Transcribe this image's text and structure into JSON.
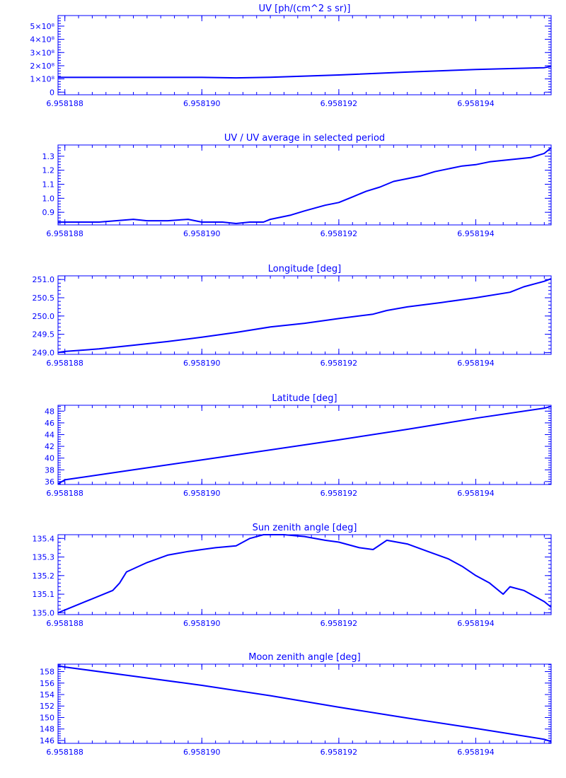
{
  "page": {
    "line_color": "#0000ff",
    "background": "#ffffff"
  },
  "chart_data": [
    {
      "type": "line",
      "title": "UV [ph/(cm^2 s sr)]",
      "xlim": [
        6.9581879,
        6.9581951
      ],
      "xticks": [
        "6.958188",
        "6.958190",
        "6.958192",
        "6.958194"
      ],
      "xtick_values": [
        6.958188,
        6.95819,
        6.958192,
        6.958194
      ],
      "ylim": [
        -20000000.0,
        580000000.0
      ],
      "yticks": [
        "0",
        "1×10⁸",
        "2×10⁸",
        "3×10⁸",
        "4×10⁸",
        "5×10⁸"
      ],
      "ytick_values": [
        0,
        100000000.0,
        200000000.0,
        300000000.0,
        400000000.0,
        500000000.0
      ],
      "series": [
        {
          "x": [
            6.9581879,
            6.958189,
            6.95819,
            6.9581905,
            6.958191,
            6.958192,
            6.958193,
            6.958194,
            6.958195,
            6.9581951
          ],
          "y": [
            112000000.0,
            112000000.0,
            112000000.0,
            108000000.0,
            113000000.0,
            130000000.0,
            152000000.0,
            172000000.0,
            185000000.0,
            195000000.0
          ]
        }
      ]
    },
    {
      "type": "line",
      "title": "UV / UV average in selected period",
      "xlim": [
        6.9581879,
        6.9581951
      ],
      "xticks": [
        "6.958188",
        "6.958190",
        "6.958192",
        "6.958194"
      ],
      "xtick_values": [
        6.958188,
        6.95819,
        6.958192,
        6.958194
      ],
      "ylim": [
        0.81,
        1.38
      ],
      "yticks": [
        "0.9",
        "1.0",
        "1.1",
        "1.2",
        "1.3"
      ],
      "ytick_values": [
        0.9,
        1.0,
        1.1,
        1.2,
        1.3
      ],
      "series": [
        {
          "x": [
            6.9581879,
            6.958188,
            6.9581885,
            6.958189,
            6.9581892,
            6.9581895,
            6.9581898,
            6.95819,
            6.9581903,
            6.9581905,
            6.9581907,
            6.9581909,
            6.958191,
            6.9581913,
            6.9581915,
            6.9581918,
            6.958192,
            6.9581922,
            6.9581924,
            6.9581926,
            6.9581928,
            6.958193,
            6.9581932,
            6.9581934,
            6.9581936,
            6.9581938,
            6.958194,
            6.9581942,
            6.9581944,
            6.9581946,
            6.9581948,
            6.958195,
            6.9581951
          ],
          "y": [
            0.83,
            0.83,
            0.83,
            0.85,
            0.84,
            0.84,
            0.85,
            0.83,
            0.83,
            0.82,
            0.83,
            0.83,
            0.85,
            0.88,
            0.91,
            0.95,
            0.97,
            1.01,
            1.05,
            1.08,
            1.12,
            1.14,
            1.16,
            1.19,
            1.21,
            1.23,
            1.24,
            1.26,
            1.27,
            1.28,
            1.29,
            1.32,
            1.36
          ]
        }
      ]
    },
    {
      "type": "line",
      "title": "Longitude [deg]",
      "xlim": [
        6.9581879,
        6.9581951
      ],
      "xticks": [
        "6.958188",
        "6.958190",
        "6.958192",
        "6.958194"
      ],
      "xtick_values": [
        6.958188,
        6.95819,
        6.958192,
        6.958194
      ],
      "ylim": [
        248.95,
        251.1
      ],
      "yticks": [
        "249.0",
        "249.5",
        "250.0",
        "250.5",
        "251.0"
      ],
      "ytick_values": [
        249.0,
        249.5,
        250.0,
        250.5,
        251.0
      ],
      "series": [
        {
          "x": [
            6.9581879,
            6.958188,
            6.9581885,
            6.958189,
            6.9581895,
            6.95819,
            6.9581905,
            6.958191,
            6.9581915,
            6.958192,
            6.9581925,
            6.9581927,
            6.958193,
            6.9581935,
            6.958194,
            6.9581945,
            6.9581947,
            6.958195,
            6.9581951
          ],
          "y": [
            249.0,
            249.03,
            249.1,
            249.2,
            249.3,
            249.42,
            249.55,
            249.7,
            249.8,
            249.93,
            250.05,
            250.15,
            250.25,
            250.37,
            250.5,
            250.65,
            250.8,
            250.95,
            251.02
          ]
        }
      ]
    },
    {
      "type": "line",
      "title": "Latitude [deg]",
      "xlim": [
        6.9581879,
        6.9581951
      ],
      "xticks": [
        "6.958188",
        "6.958190",
        "6.958192",
        "6.958194"
      ],
      "xtick_values": [
        6.958188,
        6.95819,
        6.958192,
        6.958194
      ],
      "ylim": [
        35.5,
        49.0
      ],
      "yticks": [
        "36",
        "38",
        "40",
        "42",
        "44",
        "46",
        "48"
      ],
      "ytick_values": [
        36,
        38,
        40,
        42,
        44,
        46,
        48
      ],
      "series": [
        {
          "x": [
            6.9581879,
            6.958188,
            6.958189,
            6.95819,
            6.958191,
            6.958192,
            6.958193,
            6.958194,
            6.958195,
            6.9581951
          ],
          "y": [
            35.6,
            36.3,
            38.0,
            39.7,
            41.4,
            43.1,
            44.9,
            46.8,
            48.5,
            48.8
          ]
        }
      ]
    },
    {
      "type": "line",
      "title": "Sun zenith angle [deg]",
      "xlim": [
        6.9581879,
        6.9581951
      ],
      "xticks": [
        "6.958188",
        "6.958190",
        "6.958192",
        "6.958194"
      ],
      "xtick_values": [
        6.958188,
        6.95819,
        6.958192,
        6.958194
      ],
      "ylim": [
        134.99,
        135.42
      ],
      "yticks": [
        "135.0",
        "135.1",
        "135.2",
        "135.3",
        "135.4"
      ],
      "ytick_values": [
        135.0,
        135.1,
        135.2,
        135.3,
        135.4
      ],
      "series": [
        {
          "x": [
            6.9581879,
            6.9581883,
            6.9581887,
            6.9581888,
            6.9581889,
            6.9581892,
            6.9581895,
            6.9581898,
            6.95819,
            6.9581902,
            6.9581905,
            6.9581907,
            6.9581909,
            6.9581912,
            6.9581915,
            6.9581918,
            6.958192,
            6.9581923,
            6.9581925,
            6.9581927,
            6.958193,
            6.9581933,
            6.9581936,
            6.9581938,
            6.958194,
            6.9581942,
            6.9581944,
            6.9581945,
            6.9581947,
            6.958195,
            6.9581951
          ],
          "y": [
            135.0,
            135.06,
            135.12,
            135.16,
            135.22,
            135.27,
            135.31,
            135.33,
            135.34,
            135.35,
            135.36,
            135.4,
            135.42,
            135.42,
            135.41,
            135.39,
            135.38,
            135.35,
            135.34,
            135.39,
            135.37,
            135.33,
            135.29,
            135.25,
            135.2,
            135.16,
            135.1,
            135.14,
            135.12,
            135.06,
            135.03
          ]
        }
      ]
    },
    {
      "type": "line",
      "title": "Moon zenith angle [deg]",
      "xlim": [
        6.9581879,
        6.9581951
      ],
      "xticks": [
        "6.958188",
        "6.958190",
        "6.958192",
        "6.958194"
      ],
      "xtick_values": [
        6.958188,
        6.95819,
        6.958192,
        6.958194
      ],
      "ylim": [
        145.5,
        159.3
      ],
      "yticks": [
        "146",
        "148",
        "150",
        "152",
        "154",
        "156",
        "158"
      ],
      "ytick_values": [
        146,
        148,
        150,
        152,
        154,
        156,
        158
      ],
      "series": [
        {
          "x": [
            6.9581879,
            6.958188,
            6.958189,
            6.95819,
            6.958191,
            6.958192,
            6.958193,
            6.958194,
            6.958195,
            6.9581951
          ],
          "y": [
            159.0,
            158.8,
            157.2,
            155.6,
            153.8,
            151.8,
            149.9,
            148.1,
            146.2,
            145.8
          ]
        }
      ]
    }
  ]
}
